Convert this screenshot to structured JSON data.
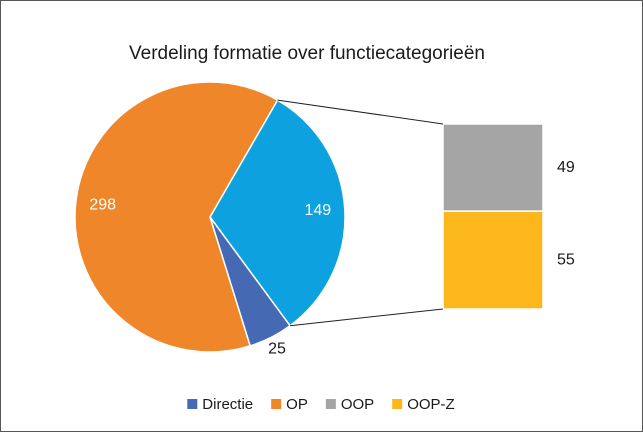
{
  "chart_data": {
    "type": "pie",
    "title": "Verdeling formatie over functiecategorieën",
    "categories": [
      null,
      "Directie",
      "OP"
    ],
    "values": [
      149,
      25,
      298
    ],
    "colors": [
      "#0ea1e0",
      "#4569b2",
      "#f0862a"
    ],
    "secondary": {
      "type": "bar",
      "categories": [
        "OOP",
        "OOP-Z"
      ],
      "values": [
        49,
        55
      ],
      "colors": [
        "#a5a5a5",
        "#fbb71c"
      ]
    }
  }
}
